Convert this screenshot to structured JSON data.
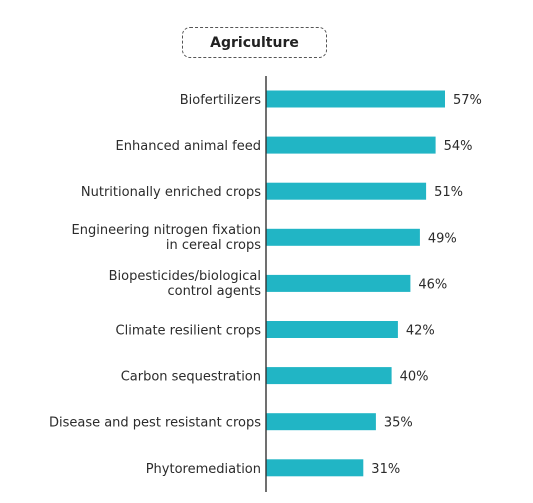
{
  "chart_data": {
    "type": "bar",
    "orientation": "horizontal",
    "title": "Agriculture",
    "categories": [
      [
        "Biofertilizers"
      ],
      [
        "Enhanced animal feed"
      ],
      [
        "Nutritionally enriched crops"
      ],
      [
        "Engineering nitrogen fixation",
        "in cereal crops"
      ],
      [
        "Biopesticides/biological",
        "control agents"
      ],
      [
        "Climate resilient crops"
      ],
      [
        "Carbon sequestration"
      ],
      [
        "Disease and pest resistant crops"
      ],
      [
        "Phytoremediation"
      ]
    ],
    "values": [
      57,
      54,
      51,
      49,
      46,
      42,
      40,
      35,
      31
    ],
    "value_suffix": "%",
    "xlim": [
      0,
      100
    ],
    "bar_color": "#21b5c5",
    "axis_color": "#333333",
    "grid": false,
    "legend": "none"
  }
}
